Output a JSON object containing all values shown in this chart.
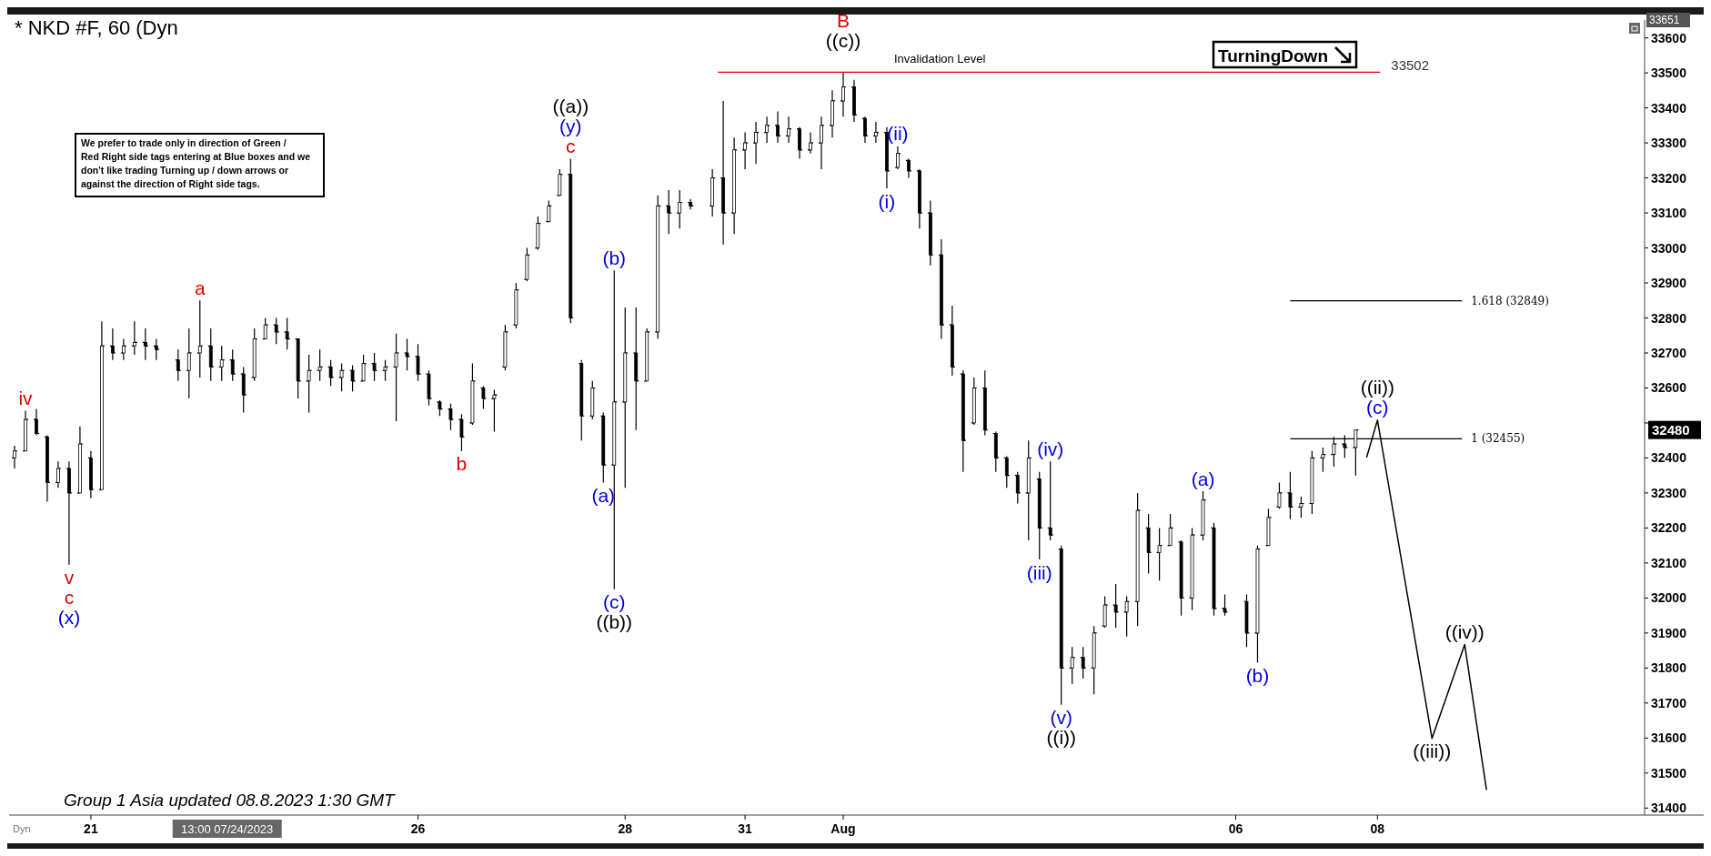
{
  "chart_data": {
    "type": "candlestick",
    "title": "* NKD #F, 60 (Dyn",
    "categories": [
      null,
      null,
      null,
      null,
      null,
      null,
      null,
      "21",
      null,
      null,
      null,
      null,
      null,
      null,
      null,
      null,
      null,
      null,
      null,
      null,
      null,
      null,
      null,
      null,
      null,
      null,
      null,
      null,
      null,
      null,
      null,
      null,
      null,
      null,
      null,
      null,
      null,
      "26",
      null,
      null,
      null,
      null,
      null,
      null,
      null,
      null,
      null,
      null,
      null,
      null,
      null,
      null,
      null,
      null,
      null,
      null,
      "28",
      null,
      null,
      null,
      null,
      null,
      null,
      null,
      null,
      null,
      null,
      "31",
      null,
      null,
      null,
      null,
      null,
      null,
      null,
      null,
      "Aug",
      null,
      null,
      null,
      null,
      null,
      null,
      null,
      null,
      null,
      null,
      null,
      null,
      null,
      null,
      null,
      null,
      null,
      null,
      null,
      null,
      null,
      null,
      null,
      null,
      null,
      null,
      null,
      null,
      null,
      null,
      null,
      null,
      null,
      null,
      null,
      "06",
      null,
      null,
      null,
      null,
      null,
      null,
      null,
      null,
      null,
      null,
      null,
      null,
      "08",
      null,
      null,
      null,
      null,
      null,
      null,
      null,
      null,
      null,
      null,
      null,
      null,
      null,
      null,
      null,
      null,
      null,
      null,
      null,
      null,
      null,
      null,
      null,
      null
    ],
    "ohlc": [
      [
        32400,
        32435,
        32370,
        32420
      ],
      [
        32420,
        32535,
        32420,
        32510
      ],
      [
        32510,
        32540,
        32465,
        32470
      ],
      [
        32460,
        32465,
        32275,
        32330
      ],
      [
        32330,
        32390,
        32315,
        32370
      ],
      [
        32370,
        32390,
        32095,
        32300
      ],
      [
        32300,
        32490,
        32300,
        32440
      ],
      [
        32400,
        32420,
        32285,
        32310
      ],
      [
        32310,
        32790,
        32310,
        32720
      ],
      [
        32720,
        32770,
        32680,
        32700
      ],
      [
        32700,
        32740,
        32680,
        32720
      ],
      [
        32720,
        32790,
        32695,
        32730
      ],
      [
        32730,
        32770,
        32680,
        32720
      ],
      [
        32720,
        32740,
        32680,
        32710
      ],
      null,
      [
        32680,
        32710,
        32620,
        32650
      ],
      [
        32650,
        32770,
        32570,
        32700
      ],
      [
        32700,
        32850,
        32630,
        32720
      ],
      [
        32720,
        32770,
        32620,
        32660
      ],
      [
        32660,
        32720,
        32620,
        32680
      ],
      [
        32680,
        32710,
        32620,
        32640
      ],
      [
        32640,
        32660,
        32530,
        32580
      ],
      [
        32630,
        32770,
        32620,
        32740
      ],
      [
        32740,
        32800,
        32740,
        32780
      ],
      [
        32780,
        32800,
        32725,
        32760
      ],
      [
        32760,
        32800,
        32710,
        32740
      ],
      [
        32740,
        32740,
        32570,
        32620
      ],
      [
        32620,
        32695,
        32530,
        32650
      ],
      [
        32650,
        32710,
        32620,
        32660
      ],
      [
        32660,
        32680,
        32605,
        32630
      ],
      [
        32630,
        32670,
        32590,
        32650
      ],
      [
        32650,
        32665,
        32590,
        32620
      ],
      [
        32620,
        32695,
        32620,
        32670
      ],
      [
        32670,
        32700,
        32620,
        32650
      ],
      [
        32650,
        32680,
        32620,
        32660
      ],
      [
        32660,
        32755,
        32505,
        32700
      ],
      [
        32700,
        32740,
        32650,
        32690
      ],
      [
        32690,
        32725,
        32620,
        32640
      ],
      [
        32640,
        32650,
        32550,
        32570
      ],
      [
        32560,
        32565,
        32520,
        32540
      ],
      [
        32540,
        32555,
        32480,
        32510
      ],
      [
        32510,
        32525,
        32420,
        32460
      ],
      [
        32500,
        32670,
        32495,
        32620
      ],
      [
        32600,
        32605,
        32540,
        32570
      ],
      [
        32570,
        32595,
        32475,
        32580
      ],
      [
        32660,
        32780,
        32650,
        32760
      ],
      [
        32780,
        32900,
        32770,
        32880
      ],
      [
        32910,
        33000,
        32905,
        32980
      ],
      [
        33000,
        33090,
        32995,
        33070
      ],
      [
        33075,
        33135,
        33075,
        33120
      ],
      [
        33150,
        33225,
        33150,
        33210
      ],
      [
        33210,
        33255,
        32785,
        32800
      ],
      [
        32670,
        32680,
        32450,
        32520
      ],
      [
        32520,
        32620,
        32510,
        32600
      ],
      [
        32520,
        32530,
        32330,
        32380
      ],
      [
        32380,
        32935,
        32025,
        32560
      ],
      [
        32560,
        32830,
        32315,
        32700
      ],
      [
        32700,
        32830,
        32480,
        32620
      ],
      [
        32620,
        32770,
        32620,
        32760
      ],
      [
        32760,
        33150,
        32740,
        33120
      ],
      [
        33120,
        33165,
        33040,
        33100
      ],
      [
        33100,
        33165,
        33055,
        33130
      ],
      [
        33130,
        33140,
        33110,
        33120
      ],
      null,
      [
        33120,
        33225,
        33090,
        33200
      ],
      [
        33200,
        33420,
        33010,
        33100
      ],
      [
        33100,
        33315,
        33040,
        33280
      ],
      [
        33280,
        33330,
        33225,
        33300
      ],
      [
        33300,
        33360,
        33240,
        33330
      ],
      [
        33330,
        33375,
        33300,
        33350
      ],
      [
        33350,
        33390,
        33300,
        33320
      ],
      [
        33320,
        33375,
        33300,
        33340
      ],
      [
        33340,
        33345,
        33255,
        33280
      ],
      [
        33280,
        33330,
        33270,
        33300
      ],
      [
        33300,
        33375,
        33225,
        33350
      ],
      [
        33350,
        33450,
        33315,
        33420
      ],
      [
        33420,
        33500,
        33375,
        33460
      ],
      [
        33460,
        33480,
        33360,
        33380
      ],
      [
        33370,
        33375,
        33300,
        33320
      ],
      [
        33320,
        33360,
        33300,
        33330
      ],
      [
        33330,
        33345,
        33170,
        33220
      ],
      [
        33230,
        33290,
        33225,
        33270
      ],
      [
        33250,
        33255,
        33200,
        33220
      ],
      [
        33220,
        33225,
        33055,
        33100
      ],
      [
        33100,
        33135,
        32950,
        32980
      ],
      [
        32980,
        33025,
        32740,
        32780
      ],
      [
        32780,
        32835,
        32635,
        32660
      ],
      [
        32640,
        32650,
        32360,
        32450
      ],
      [
        32500,
        32630,
        32495,
        32600
      ],
      [
        32600,
        32650,
        32465,
        32480
      ],
      [
        32470,
        32475,
        32360,
        32400
      ],
      [
        32400,
        32405,
        32315,
        32350
      ],
      [
        32350,
        32360,
        32270,
        32300
      ],
      [
        32300,
        32450,
        32165,
        32400
      ],
      [
        32340,
        32360,
        32110,
        32200
      ],
      [
        32200,
        32390,
        32165,
        32180
      ],
      [
        32140,
        32150,
        31695,
        31800
      ],
      [
        31800,
        31860,
        31755,
        31830
      ],
      [
        31830,
        31860,
        31770,
        31800
      ],
      [
        31800,
        31920,
        31725,
        31900
      ],
      [
        31920,
        32005,
        31915,
        31980
      ],
      [
        31980,
        32040,
        31915,
        31960
      ],
      [
        31960,
        32005,
        31890,
        31990
      ],
      [
        31990,
        32300,
        31920,
        32250
      ],
      [
        32200,
        32240,
        32070,
        32130
      ],
      [
        32130,
        32200,
        32050,
        32150
      ],
      [
        32150,
        32240,
        32150,
        32200
      ],
      [
        32160,
        32165,
        31950,
        32000
      ],
      [
        32000,
        32200,
        31965,
        32180
      ],
      [
        32180,
        32305,
        32165,
        32280
      ],
      [
        32200,
        32215,
        31950,
        31970
      ],
      [
        31970,
        32010,
        31950,
        31960
      ],
      null,
      [
        31990,
        32010,
        31860,
        31900
      ],
      [
        31900,
        32150,
        31815,
        32140
      ],
      [
        32150,
        32255,
        32150,
        32230
      ],
      [
        32260,
        32330,
        32255,
        32300
      ],
      [
        32300,
        32360,
        32225,
        32260
      ],
      [
        32260,
        32290,
        32230,
        32270
      ],
      [
        32270,
        32420,
        32240,
        32400
      ],
      [
        32400,
        32430,
        32360,
        32410
      ],
      [
        32410,
        32460,
        32375,
        32440
      ],
      [
        32440,
        32465,
        32400,
        32430
      ],
      [
        32430,
        32480,
        32350,
        32480
      ],
      null,
      null,
      null,
      null,
      null,
      null,
      null,
      null,
      null,
      null,
      null,
      null,
      null,
      null,
      null,
      null,
      null,
      null,
      null,
      null,
      null,
      null,
      null,
      null,
      null,
      null
    ],
    "color": "#000000",
    "series": [
      {
        "type": "line",
        "color": "#000000",
        "values": [
          null,
          null,
          null,
          null,
          null,
          null,
          null,
          null,
          null,
          null,
          null,
          null,
          null,
          null,
          null,
          null,
          null,
          null,
          null,
          null,
          null,
          null,
          null,
          null,
          null,
          null,
          null,
          null,
          null,
          null,
          null,
          null,
          null,
          null,
          null,
          null,
          null,
          null,
          null,
          null,
          null,
          null,
          null,
          null,
          null,
          null,
          null,
          null,
          null,
          null,
          null,
          null,
          null,
          null,
          null,
          null,
          null,
          null,
          null,
          null,
          null,
          null,
          null,
          null,
          null,
          null,
          null,
          null,
          null,
          null,
          null,
          null,
          null,
          null,
          null,
          null,
          null,
          null,
          null,
          null,
          null,
          null,
          null,
          null,
          null,
          null,
          null,
          null,
          null,
          null,
          null,
          null,
          null,
          null,
          null,
          null,
          null,
          null,
          null,
          null,
          null,
          null,
          null,
          null,
          null,
          null,
          null,
          null,
          null,
          null,
          null,
          null,
          null,
          null,
          null,
          null,
          null,
          null,
          null,
          null,
          null,
          null,
          null,
          null,
          32401,
          32508,
          null,
          null,
          null,
          null,
          31599,
          null,
          null,
          31867,
          null,
          31452,
          null,
          null,
          null,
          null,
          null,
          null,
          null,
          null,
          null,
          null,
          null,
          null,
          null,
          null
        ]
      }
    ],
    "ylim": [
      31380,
      33651
    ],
    "yticks": [
      31400,
      31500,
      31600,
      31700,
      31800,
      31900,
      32000,
      32100,
      32200,
      32300,
      32400,
      {
        "value": 32500,
        "label": null
      },
      32600,
      32700,
      32800,
      32900,
      33000,
      33100,
      33200,
      33300,
      33400,
      33500,
      33600
    ],
    "ref_lines": [
      {
        "axis": "y",
        "value": 33502,
        "label": "Invalidation Level",
        "color": "#e00000"
      },
      {
        "axis": "y",
        "value": 32849,
        "label": "1.618 (32849)",
        "color": "#000000"
      },
      {
        "axis": "y",
        "value": 32455,
        "label": "1 (32455)",
        "color": "#000000"
      }
    ],
    "annotations": [
      "We prefer to trade only in direction of Green / Red Right side tags entering at Blue boxes and we don't like trading Turning up / down arrows or against the direction of Right side tags.",
      "TurningDown",
      "Group 1 Asia updated 08.8.2023 1:30 GMT",
      "13:00 07/24/2023",
      "33502",
      "33651",
      "32480",
      "Dyn",
      "iv",
      "v",
      "c",
      "a",
      "b",
      "c",
      "B",
      "(x)",
      "(y)",
      "(b)",
      "(a)",
      "(c)",
      "(ii)",
      "(i)",
      "(iv)",
      "(iii)",
      "(v)",
      "(a)",
      "(b)",
      "(c)",
      "((a))",
      "((b))",
      "((c))",
      "((i))",
      "((ii))",
      "((iii))",
      "((iv))"
    ],
    "grid": false
  }
}
